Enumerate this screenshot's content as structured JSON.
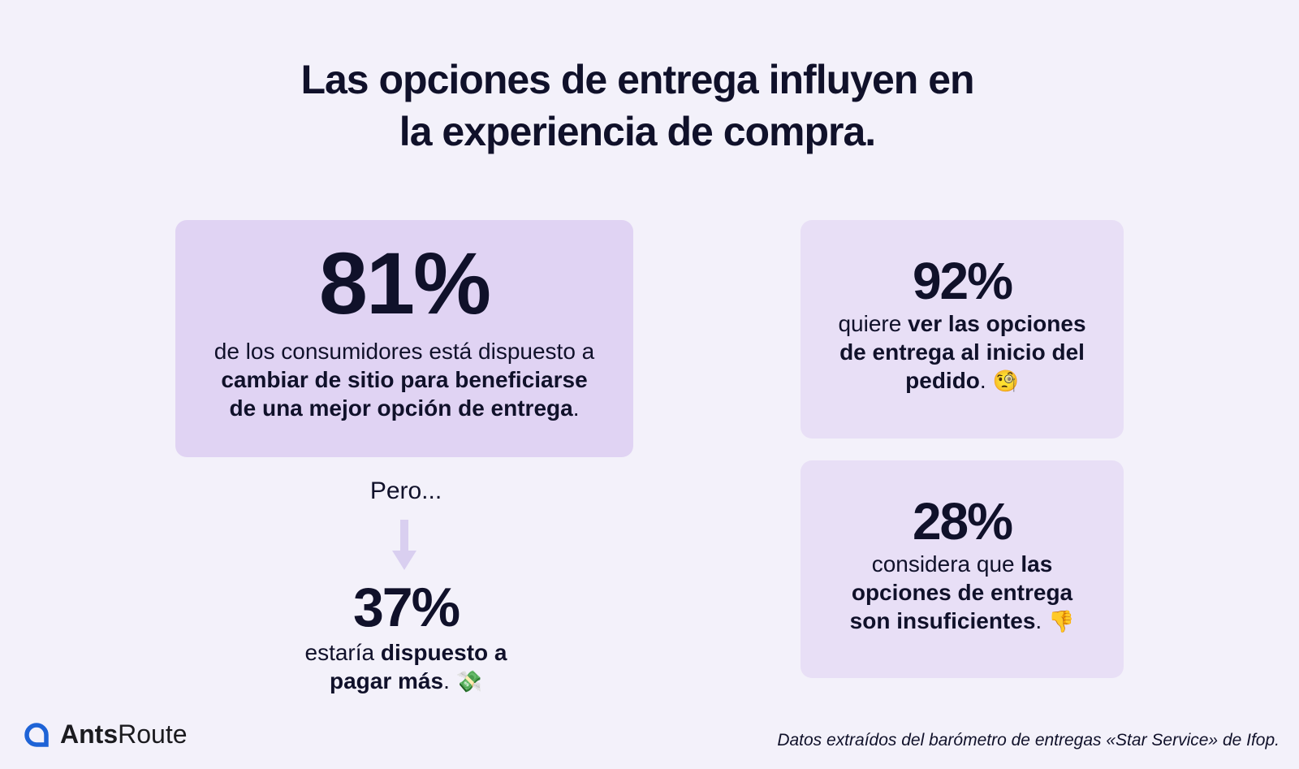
{
  "title": {
    "line1": "Las opciones de entrega influyen en",
    "line2": "la experiencia de compra."
  },
  "card_main": {
    "value": "81%",
    "text1": "de los consumidores está dispuesto a",
    "bold": "cambiar de sitio para beneficiarse de una mejor opción de entrega",
    "end": "."
  },
  "pero": "Pero...",
  "card_37": {
    "value": "37%",
    "text1": "estaría ",
    "bold": "dispuesto a pagar más",
    "end": ".",
    "emoji": "💸"
  },
  "card_92": {
    "value": "92%",
    "text1": "quiere ",
    "bold": "ver las opciones de entrega al inicio del pedido",
    "end": ".",
    "emoji": "🧐"
  },
  "card_28": {
    "value": "28%",
    "text1": "considera que ",
    "bold": "las opciones de entrega son insuficientes",
    "end": ".",
    "emoji": "👎"
  },
  "logo": {
    "bold": "Ants",
    "regular": "Route"
  },
  "source": "Datos extraídos del barómetro de entregas «Star Service» de Ifop.",
  "colors": {
    "background": "#f3f1fa",
    "main_card": "#e0d3f3",
    "side_card": "#e8dff6",
    "arrow": "#d9cff0",
    "logo_blue": "#1e63d6"
  }
}
